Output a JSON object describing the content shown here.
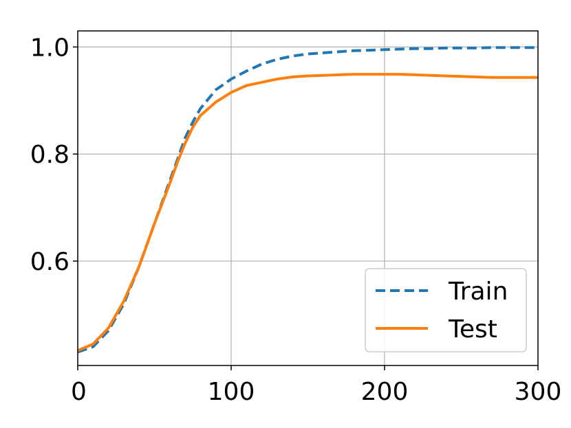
{
  "chart_data": {
    "type": "line",
    "title": "",
    "xlabel": "",
    "ylabel": "",
    "xlim": [
      0,
      300
    ],
    "ylim": [
      0.405,
      1.03
    ],
    "xticks": [
      {
        "value": 0,
        "label": "0"
      },
      {
        "value": 100,
        "label": "100"
      },
      {
        "value": 200,
        "label": "200"
      },
      {
        "value": 300,
        "label": "300"
      }
    ],
    "yticks": [
      {
        "value": 0.6,
        "label": "0.6"
      },
      {
        "value": 0.8,
        "label": "0.8"
      },
      {
        "value": 1.0,
        "label": "1.0"
      }
    ],
    "grid": true,
    "legend_position": "lower-right",
    "series": [
      {
        "name": "Train",
        "color": "#1f77b4",
        "style": "dashed",
        "x": [
          0,
          10,
          20,
          30,
          40,
          50,
          60,
          65,
          70,
          75,
          80,
          90,
          100,
          110,
          120,
          130,
          140,
          150,
          160,
          170,
          180,
          190,
          200,
          210,
          220,
          230,
          240,
          250,
          260,
          270,
          280,
          290,
          300
        ],
        "y": [
          0.43,
          0.44,
          0.47,
          0.52,
          0.59,
          0.67,
          0.75,
          0.79,
          0.83,
          0.86,
          0.885,
          0.92,
          0.94,
          0.955,
          0.968,
          0.977,
          0.983,
          0.987,
          0.989,
          0.991,
          0.993,
          0.994,
          0.995,
          0.996,
          0.997,
          0.997,
          0.998,
          0.998,
          0.998,
          0.999,
          0.999,
          0.999,
          0.999
        ]
      },
      {
        "name": "Test",
        "color": "#ff7f0e",
        "style": "solid",
        "x": [
          0,
          10,
          20,
          30,
          40,
          50,
          60,
          65,
          70,
          75,
          80,
          90,
          100,
          110,
          120,
          130,
          140,
          150,
          160,
          170,
          180,
          190,
          200,
          210,
          220,
          230,
          240,
          250,
          260,
          270,
          280,
          290,
          300
        ],
        "y": [
          0.433,
          0.445,
          0.475,
          0.525,
          0.59,
          0.67,
          0.745,
          0.785,
          0.82,
          0.85,
          0.872,
          0.897,
          0.915,
          0.928,
          0.934,
          0.94,
          0.944,
          0.946,
          0.947,
          0.948,
          0.949,
          0.949,
          0.949,
          0.949,
          0.948,
          0.947,
          0.946,
          0.945,
          0.944,
          0.943,
          0.943,
          0.943,
          0.943
        ]
      }
    ]
  }
}
